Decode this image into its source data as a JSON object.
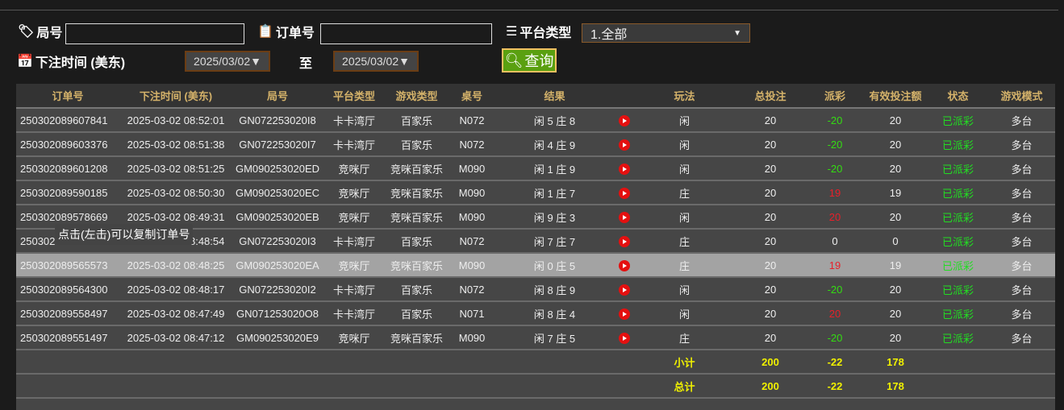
{
  "filters": {
    "round_label": "局号",
    "round_value": "",
    "order_label": "订单号",
    "order_value": "",
    "platform_label": "平台类型",
    "platform_value": "1.全部",
    "time_label": "下注时间 (美东)",
    "date_from": "2025/03/02▼",
    "to_label": "至",
    "date_to": "2025/03/02▼",
    "query_label": "查询"
  },
  "table": {
    "headers": [
      "订单号",
      "下注时间 (美东)",
      "局号",
      "平台类型",
      "游戏类型",
      "桌号",
      "结果",
      "",
      "玩法",
      "总投注",
      "派彩",
      "有效投注额",
      "状态",
      "游戏模式"
    ],
    "rows": [
      {
        "order": "250302089607841",
        "time": "2025-03-02 08:52:01",
        "round": "GN072253020I8",
        "platform": "卡卡湾厅",
        "game": "百家乐",
        "table": "N072",
        "result": "闲 5 庄 8",
        "play": "闲",
        "bet": "20",
        "payout": "-20",
        "payout_color": "green",
        "valid": "20",
        "status": "已派彩",
        "mode": "多台"
      },
      {
        "order": "250302089603376",
        "time": "2025-03-02 08:51:38",
        "round": "GN072253020I7",
        "platform": "卡卡湾厅",
        "game": "百家乐",
        "table": "N072",
        "result": "闲 4 庄 9",
        "play": "闲",
        "bet": "20",
        "payout": "-20",
        "payout_color": "green",
        "valid": "20",
        "status": "已派彩",
        "mode": "多台"
      },
      {
        "order": "250302089601208",
        "time": "2025-03-02 08:51:25",
        "round": "GM090253020ED",
        "platform": "竞咪厅",
        "game": "竞咪百家乐",
        "table": "M090",
        "result": "闲 1 庄 9",
        "play": "闲",
        "bet": "20",
        "payout": "-20",
        "payout_color": "green",
        "valid": "20",
        "status": "已派彩",
        "mode": "多台"
      },
      {
        "order": "250302089590185",
        "time": "2025-03-02 08:50:30",
        "round": "GM090253020EC",
        "platform": "竞咪厅",
        "game": "竞咪百家乐",
        "table": "M090",
        "result": "闲 1 庄 7",
        "play": "庄",
        "bet": "20",
        "payout": "19",
        "payout_color": "red",
        "valid": "19",
        "status": "已派彩",
        "mode": "多台"
      },
      {
        "order": "250302089578669",
        "time": "2025-03-02 08:49:31",
        "round": "GM090253020EB",
        "platform": "竞咪厅",
        "game": "竞咪百家乐",
        "table": "M090",
        "result": "闲 9 庄 3",
        "play": "闲",
        "bet": "20",
        "payout": "20",
        "payout_color": "red",
        "valid": "20",
        "status": "已派彩",
        "mode": "多台"
      },
      {
        "order": "250302",
        "time": "2025-03-02 08:48:54",
        "round": "GN072253020I3",
        "platform": "卡卡湾厅",
        "game": "百家乐",
        "table": "N072",
        "result": "闲 7 庄 7",
        "play": "庄",
        "bet": "20",
        "payout": "0",
        "payout_color": "white",
        "valid": "0",
        "status": "已派彩",
        "mode": "多台"
      },
      {
        "order": "250302089565573",
        "time": "2025-03-02 08:48:25",
        "round": "GM090253020EA",
        "platform": "竞咪厅",
        "game": "竞咪百家乐",
        "table": "M090",
        "result": "闲 0 庄 5",
        "play": "庄",
        "bet": "20",
        "payout": "19",
        "payout_color": "red",
        "valid": "19",
        "status": "已派彩",
        "mode": "多台"
      },
      {
        "order": "250302089564300",
        "time": "2025-03-02 08:48:17",
        "round": "GN072253020I2",
        "platform": "卡卡湾厅",
        "game": "百家乐",
        "table": "N072",
        "result": "闲 8 庄 9",
        "play": "闲",
        "bet": "20",
        "payout": "-20",
        "payout_color": "green",
        "valid": "20",
        "status": "已派彩",
        "mode": "多台"
      },
      {
        "order": "250302089558497",
        "time": "2025-03-02 08:47:49",
        "round": "GN071253020O8",
        "platform": "卡卡湾厅",
        "game": "百家乐",
        "table": "N071",
        "result": "闲 8 庄 4",
        "play": "闲",
        "bet": "20",
        "payout": "20",
        "payout_color": "red",
        "valid": "20",
        "status": "已派彩",
        "mode": "多台"
      },
      {
        "order": "250302089551497",
        "time": "2025-03-02 08:47:12",
        "round": "GM090253020E9",
        "platform": "竞咪厅",
        "game": "竞咪百家乐",
        "table": "M090",
        "result": "闲 7 庄 5",
        "play": "庄",
        "bet": "20",
        "payout": "-20",
        "payout_color": "green",
        "valid": "20",
        "status": "已派彩",
        "mode": "多台"
      }
    ],
    "subtotal": {
      "label": "小计",
      "bet": "200",
      "payout": "-22",
      "valid": "178"
    },
    "total": {
      "label": "总计",
      "bet": "200",
      "payout": "-22",
      "valid": "178"
    }
  },
  "tooltip": "点击(左击)可以复制订单号",
  "colors": {
    "header_text": "#d4b26a",
    "win": "#e8202a",
    "loss": "#33dd11",
    "summary": "#f0f000",
    "query_button": "#5aa010"
  }
}
